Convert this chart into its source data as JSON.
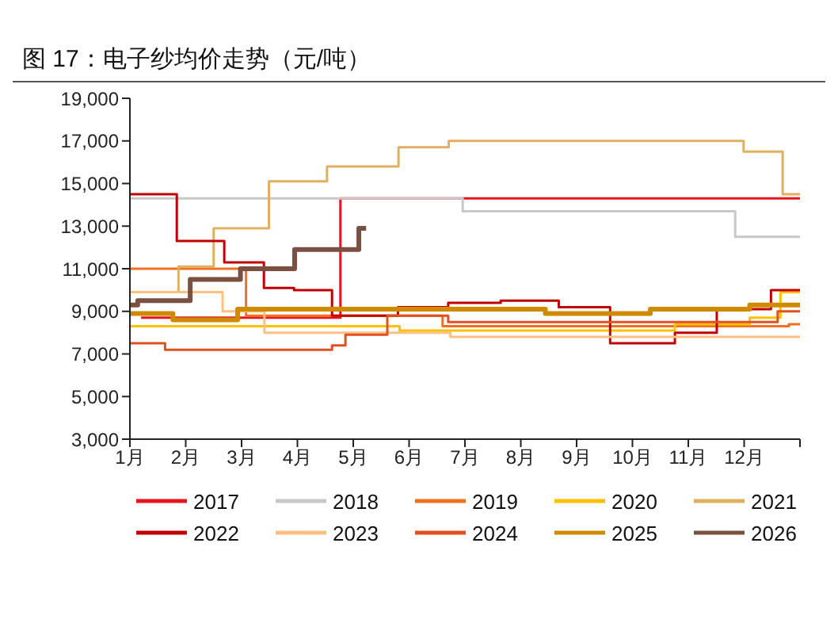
{
  "chart_data": {
    "type": "step",
    "title": "图 17：电子纱均价走势（元/吨）",
    "xlim": [
      1,
      13
    ],
    "xticks": [
      {
        "value": 1,
        "label": "1月"
      },
      {
        "value": 2,
        "label": "2月"
      },
      {
        "value": 3,
        "label": "3月"
      },
      {
        "value": 4,
        "label": "4月"
      },
      {
        "value": 5,
        "label": "5月"
      },
      {
        "value": 6,
        "label": "6月"
      },
      {
        "value": 7,
        "label": "7月"
      },
      {
        "value": 8,
        "label": "8月"
      },
      {
        "value": 9,
        "label": "9月"
      },
      {
        "value": 10,
        "label": "10月"
      },
      {
        "value": 11,
        "label": "11月"
      },
      {
        "value": 12,
        "label": "12月"
      },
      {
        "value": 13,
        "label": null
      }
    ],
    "ylim": [
      3000,
      19000
    ],
    "yticks": [
      {
        "value": 3000,
        "label": "3,000"
      },
      {
        "value": 5000,
        "label": "5,000"
      },
      {
        "value": 7000,
        "label": "7,000"
      },
      {
        "value": 9000,
        "label": "9,000"
      },
      {
        "value": 11000,
        "label": "11,000"
      },
      {
        "value": 13000,
        "label": "13,000"
      },
      {
        "value": 15000,
        "label": "15,000"
      },
      {
        "value": 17000,
        "label": "17,000"
      },
      {
        "value": 19000,
        "label": "19,000"
      }
    ],
    "grid": false,
    "legend": "bottom",
    "marker": "none",
    "line_style": "solid",
    "series": [
      {
        "name": "2017",
        "color": "#e8141c",
        "x": [
          1.2,
          4.77,
          13
        ],
        "values": [
          8700,
          14300,
          14300
        ]
      },
      {
        "name": "2018",
        "color": "#c8c8c8",
        "x": [
          1,
          6.96,
          11.84,
          13
        ],
        "values": [
          14300,
          13700,
          12500,
          12500
        ]
      },
      {
        "name": "2019",
        "color": "#f07020",
        "x": [
          1,
          3.08,
          6.6,
          12.8,
          13
        ],
        "values": [
          11000,
          8800,
          8300,
          8400,
          8400
        ]
      },
      {
        "name": "2020",
        "color": "#ffc000",
        "x": [
          1,
          5.83,
          10.76,
          12.1,
          12.65,
          13
        ],
        "values": [
          8300,
          8100,
          8400,
          8700,
          9900,
          9900
        ]
      },
      {
        "name": "2021",
        "color": "#e0b060",
        "x": [
          1,
          1.87,
          2.5,
          3.49,
          4.53,
          5.81,
          6.71,
          11.99,
          12.69,
          13
        ],
        "values": [
          9900,
          11100,
          12900,
          15100,
          15800,
          16700,
          17000,
          16500,
          14500,
          14500
        ]
      },
      {
        "name": "2022",
        "color": "#c00000",
        "x": [
          1,
          1.84,
          2.69,
          3.4,
          3.94,
          4.62,
          5.8,
          6.7,
          7.64,
          8.68,
          9.6,
          10.76,
          11.51,
          12.48,
          13
        ],
        "values": [
          14500,
          12300,
          11300,
          10100,
          10000,
          8800,
          9200,
          9400,
          9500,
          9200,
          7500,
          8000,
          9100,
          10000,
          10000
        ]
      },
      {
        "name": "2023",
        "color": "#ffc080",
        "x": [
          1,
          2.66,
          3.41,
          6.74,
          13
        ],
        "values": [
          9900,
          9000,
          8000,
          7800,
          7800
        ]
      },
      {
        "name": "2024",
        "color": "#e05020",
        "x": [
          1,
          1.63,
          4.62,
          4.86,
          5.61,
          6.7,
          12.6,
          13
        ],
        "values": [
          7500,
          7200,
          7400,
          7900,
          8800,
          8500,
          9000,
          9000
        ]
      },
      {
        "name": "2025",
        "color": "#d08a00",
        "x": [
          1,
          1.77,
          2.93,
          8.44,
          10.32,
          12.1,
          13
        ],
        "values": [
          8900,
          8600,
          9100,
          8900,
          9100,
          9300,
          9300
        ]
      },
      {
        "name": "2026",
        "color": "#7a5040",
        "x": [
          1,
          1.14,
          2.08,
          2.98,
          3.95,
          5.1,
          5.23
        ],
        "values": [
          9300,
          9500,
          10500,
          11000,
          11900,
          12900,
          12900
        ]
      }
    ]
  }
}
